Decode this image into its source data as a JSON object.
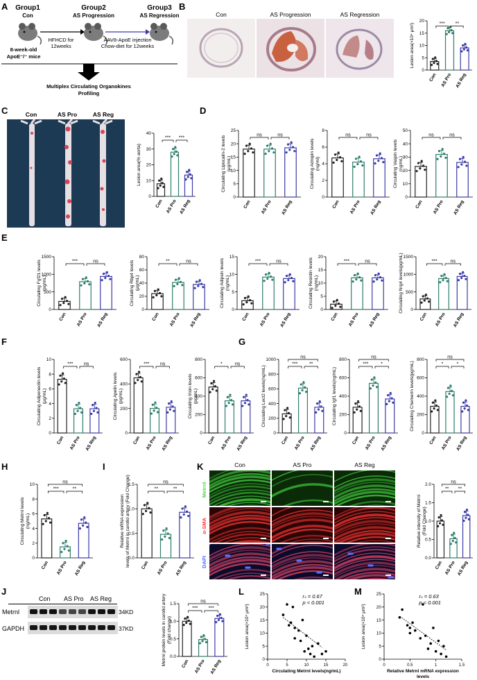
{
  "panel_letters": {
    "A": "A",
    "B": "B",
    "C": "C",
    "D": "D",
    "E": "E",
    "F": "F",
    "G": "G",
    "H": "H",
    "I": "I",
    "J": "J",
    "K": "K",
    "L": "L",
    "M": "M"
  },
  "panel_a": {
    "group1": "Group1",
    "group1_sub": "Con",
    "group2": "Group2",
    "group2_sub": "AS Progression",
    "group3": "Group3",
    "group3_sub": "AS Regression",
    "mice_line1": "8-week-old",
    "mice_line2": "ApoE⁻/⁻ mice",
    "step1_line1": "HFHCD for",
    "step1_line2": "12weeks",
    "step2_line1": "AAV8-ApoE injection",
    "step2_line2": "Chow-diet for 12weeks",
    "result_line1": "Multiplex Circulating Organokines",
    "result_line2": "Profiling"
  },
  "panel_b": {
    "headers": [
      "Con",
      "AS Progression",
      "AS Regression"
    ]
  },
  "panel_c": {
    "headers": [
      "Con",
      "AS Pro",
      "AS Reg"
    ]
  },
  "panel_j": {
    "lanes": [
      "Con",
      "AS Pro",
      "AS Reg"
    ],
    "rows": [
      "Metrnl",
      "GAPDH"
    ],
    "kda": [
      "34KD",
      "37KD"
    ]
  },
  "panel_k": {
    "cols": [
      "Con",
      "AS Pro",
      "AS Reg"
    ],
    "rows": [
      "Metrnl",
      "α-SMA",
      "DAPI"
    ],
    "row_colors": [
      "#4fd84a",
      "#ff3b3b",
      "#4a6cff"
    ]
  },
  "colors": {
    "con": "#222222",
    "pro": "#2e7d6b",
    "reg": "#3a3aa8"
  },
  "chart_data": [
    {
      "id": "B",
      "type": "bar",
      "categories": [
        "Con",
        "AS Pro",
        "AS Reg"
      ],
      "values": [
        3.5,
        16,
        9
      ],
      "ylim": [
        0,
        20
      ],
      "yticks": [
        0,
        5,
        10,
        15,
        20
      ],
      "ylabel": "Lesion area(×10⁴ μm²)",
      "sig": [
        {
          "a": 0,
          "b": 1,
          "t": "***",
          "lv": 0
        },
        {
          "a": 1,
          "b": 2,
          "t": "**",
          "lv": 0
        }
      ]
    },
    {
      "id": "C",
      "type": "bar",
      "categories": [
        "Con",
        "AS Pro",
        "AS Reg"
      ],
      "values": [
        8,
        28,
        13.5
      ],
      "ylim": [
        0,
        40
      ],
      "yticks": [
        0,
        10,
        20,
        30,
        40
      ],
      "ylabel": "Lesion area(% aorta)",
      "sig": [
        {
          "a": 0,
          "b": 1,
          "t": "***",
          "lv": 0
        },
        {
          "a": 1,
          "b": 2,
          "t": "***",
          "lv": 0
        }
      ]
    },
    {
      "id": "D1",
      "type": "bar",
      "categories": [
        "Con",
        "AS Pro",
        "AS Reg"
      ],
      "values": [
        18,
        18,
        18.5
      ],
      "ylim": [
        0,
        25
      ],
      "yticks": [
        0,
        5,
        10,
        15,
        20,
        25
      ],
      "ylabel": [
        "Circulating Lipocalin-2 levels",
        "(μg/mL)"
      ],
      "sig": [
        {
          "a": 0,
          "b": 1,
          "t": "ns",
          "lv": 0
        },
        {
          "a": 1,
          "b": 2,
          "t": "ns",
          "lv": 0
        }
      ]
    },
    {
      "id": "D2",
      "type": "bar",
      "categories": [
        "Con",
        "AS Pro",
        "AS Reg"
      ],
      "values": [
        4.7,
        4.2,
        4.6
      ],
      "ylim": [
        0,
        8
      ],
      "yticks": [
        0,
        2,
        4,
        6,
        8
      ],
      "ylabel": [
        "Circulating Adropin levels",
        "(ng/ml)"
      ],
      "sig": [
        {
          "a": 0,
          "b": 1,
          "t": "ns",
          "lv": 0
        },
        {
          "a": 1,
          "b": 2,
          "t": "ns",
          "lv": 0
        }
      ]
    },
    {
      "id": "D3",
      "type": "bar",
      "categories": [
        "Con",
        "AS Pro",
        "AS Reg"
      ],
      "values": [
        23,
        32,
        26
      ],
      "ylim": [
        0,
        50
      ],
      "yticks": [
        0,
        10,
        20,
        30,
        40,
        50
      ],
      "ylabel": [
        "Circulating Vaspin levels",
        "(ng/mL)"
      ],
      "sig": [
        {
          "a": 0,
          "b": 1,
          "t": "ns",
          "lv": 0
        },
        {
          "a": 1,
          "b": 2,
          "t": "ns",
          "lv": 0
        }
      ]
    },
    {
      "id": "E1",
      "type": "bar",
      "categories": [
        "Con",
        "AS Pro",
        "AS Reg"
      ],
      "values": [
        230,
        790,
        940
      ],
      "ylim": [
        0,
        1500
      ],
      "yticks": [
        0,
        500,
        1000,
        1500
      ],
      "ylabel": [
        "Circulating Fgf21 levels",
        "(pg/mL)"
      ],
      "sig": [
        {
          "a": 0,
          "b": 1,
          "t": "***",
          "lv": 0
        },
        {
          "a": 1,
          "b": 2,
          "t": "ns",
          "lv": 0
        }
      ]
    },
    {
      "id": "E2",
      "type": "bar",
      "categories": [
        "Con",
        "AS Pro",
        "AS Reg"
      ],
      "values": [
        24,
        41,
        38
      ],
      "ylim": [
        0,
        80
      ],
      "yticks": [
        0,
        20,
        40,
        60,
        80
      ],
      "ylabel": [
        "Circulating Rbp4 levels",
        "(μg/mL)"
      ],
      "sig": [
        {
          "a": 0,
          "b": 1,
          "t": "**",
          "lv": 0
        },
        {
          "a": 1,
          "b": 2,
          "t": "ns",
          "lv": 0
        }
      ]
    },
    {
      "id": "E3",
      "type": "bar",
      "categories": [
        "Con",
        "AS Pro",
        "AS Reg"
      ],
      "values": [
        2.5,
        9.2,
        8.8
      ],
      "ylim": [
        0,
        15
      ],
      "yticks": [
        0,
        5,
        10,
        15
      ],
      "ylabel": [
        "Circulating Adipsin levels",
        "(ng/mL)"
      ],
      "sig": [
        {
          "a": 0,
          "b": 1,
          "t": "***",
          "lv": 0
        },
        {
          "a": 1,
          "b": 2,
          "t": "ns",
          "lv": 0
        }
      ]
    },
    {
      "id": "E4",
      "type": "bar",
      "categories": [
        "Con",
        "AS Pro",
        "AS Reg"
      ],
      "values": [
        2,
        12,
        12
      ],
      "ylim": [
        0,
        20
      ],
      "yticks": [
        0,
        5,
        10,
        15,
        20
      ],
      "ylabel": [
        "Circulating Resistin levels",
        "(ng/mL)"
      ],
      "sig": [
        {
          "a": 0,
          "b": 1,
          "t": "***",
          "lv": 0
        },
        {
          "a": 1,
          "b": 2,
          "t": "ns",
          "lv": 0
        }
      ]
    },
    {
      "id": "E5",
      "type": "bar",
      "categories": [
        "Con",
        "AS Pro",
        "AS Reg"
      ],
      "values": [
        300,
        880,
        940
      ],
      "ylim": [
        0,
        1500
      ],
      "yticks": [
        0,
        500,
        1000,
        1500
      ],
      "ylabel": "Circulating Nrg4 levels(pg/mL)",
      "sig": [
        {
          "a": 0,
          "b": 1,
          "t": "***",
          "lv": 0
        },
        {
          "a": 1,
          "b": 2,
          "t": "ns",
          "lv": 0
        }
      ]
    },
    {
      "id": "F1",
      "type": "bar",
      "categories": [
        "Con",
        "AS Pro",
        "AS Reg"
      ],
      "values": [
        7.3,
        3.3,
        3.3
      ],
      "ylim": [
        0,
        10
      ],
      "yticks": [
        0,
        2,
        4,
        6,
        8,
        10
      ],
      "ylabel": [
        "Circulating Adiponectin levels",
        "(μg/mL)"
      ],
      "sig": [
        {
          "a": 0,
          "b": 1,
          "t": "***",
          "lv": 0
        },
        {
          "a": 1,
          "b": 2,
          "t": "ns",
          "lv": 0
        }
      ]
    },
    {
      "id": "F2",
      "type": "bar",
      "categories": [
        "Con",
        "AS Pro",
        "AS Reg"
      ],
      "values": [
        450,
        200,
        210
      ],
      "ylim": [
        0,
        600
      ],
      "yticks": [
        0,
        200,
        400,
        600
      ],
      "ylabel": [
        "Circulating Apelin levels",
        "(pg/mL)"
      ],
      "sig": [
        {
          "a": 0,
          "b": 1,
          "t": "***",
          "lv": 0
        },
        {
          "a": 1,
          "b": 2,
          "t": "ns",
          "lv": 0
        }
      ]
    },
    {
      "id": "F3",
      "type": "bar",
      "categories": [
        "Con",
        "AS Pro",
        "AS Reg"
      ],
      "values": [
        500,
        350,
        350
      ],
      "ylim": [
        0,
        800
      ],
      "yticks": [
        0,
        200,
        400,
        600,
        800
      ],
      "ylabel": [
        "Circulating Irisin levels",
        "(pg/mL)"
      ],
      "sig": [
        {
          "a": 0,
          "b": 1,
          "t": "*",
          "lv": 0
        },
        {
          "a": 1,
          "b": 2,
          "t": "ns",
          "lv": 0
        }
      ]
    },
    {
      "id": "G1",
      "type": "bar",
      "categories": [
        "Con",
        "AS Pro",
        "AS Reg"
      ],
      "values": [
        260,
        610,
        350
      ],
      "ylim": [
        0,
        1000
      ],
      "yticks": [
        0,
        200,
        400,
        600,
        800,
        1000
      ],
      "ylabel": "Circulating Lect2 levels(ng/mL)",
      "sig": [
        {
          "a": 0,
          "b": 1,
          "t": "***",
          "lv": 0
        },
        {
          "a": 1,
          "b": 2,
          "t": "**",
          "lv": 0
        },
        {
          "a": 0,
          "b": 2,
          "t": "ns",
          "lv": 1
        }
      ]
    },
    {
      "id": "G2",
      "type": "bar",
      "categories": [
        "Con",
        "AS Pro",
        "AS Reg"
      ],
      "values": [
        280,
        540,
        370
      ],
      "ylim": [
        0,
        800
      ],
      "yticks": [
        0,
        200,
        400,
        600,
        800
      ],
      "ylabel": "Circulating Igf1 levels(ng/mL)",
      "sig": [
        {
          "a": 0,
          "b": 1,
          "t": "***",
          "lv": 0
        },
        {
          "a": 1,
          "b": 2,
          "t": "*",
          "lv": 0
        },
        {
          "a": 0,
          "b": 2,
          "t": "ns",
          "lv": 1
        }
      ]
    },
    {
      "id": "G3",
      "type": "bar",
      "categories": [
        "Con",
        "AS Pro",
        "AS Reg"
      ],
      "values": [
        290,
        450,
        290
      ],
      "ylim": [
        0,
        800
      ],
      "yticks": [
        0,
        200,
        400,
        600,
        800
      ],
      "ylabel": "Circulating Chemerin levels(pg/mL)",
      "sig": [
        {
          "a": 0,
          "b": 1,
          "t": "*",
          "lv": 0
        },
        {
          "a": 1,
          "b": 2,
          "t": "*",
          "lv": 0
        },
        {
          "a": 0,
          "b": 2,
          "t": "ns",
          "lv": 1
        }
      ]
    },
    {
      "id": "H",
      "type": "bar",
      "categories": [
        "Con",
        "AS Pro",
        "AS Reg"
      ],
      "values": [
        5.3,
        1.5,
        4.7
      ],
      "ylim": [
        0,
        10
      ],
      "yticks": [
        0,
        2,
        4,
        6,
        8,
        10
      ],
      "ylabel": [
        "Circulating Metrnl levels",
        "(ng/mL)"
      ],
      "sig": [
        {
          "a": 0,
          "b": 1,
          "t": "***",
          "lv": 0
        },
        {
          "a": 1,
          "b": 2,
          "t": "**",
          "lv": 0
        },
        {
          "a": 0,
          "b": 2,
          "t": "ns",
          "lv": 1
        }
      ]
    },
    {
      "id": "I",
      "type": "bar",
      "categories": [
        "Con",
        "AS Pro",
        "AS Reg"
      ],
      "values": [
        1.0,
        0.48,
        0.93
      ],
      "ylim": [
        0,
        1.5
      ],
      "yticks": [
        0.0,
        0.5,
        1.0,
        1.5
      ],
      "ylabel": [
        "Relative mRNA expression",
        "levels of Metrnl in carotid artery (Fold Change)"
      ],
      "sig": [
        {
          "a": 0,
          "b": 1,
          "t": "**",
          "lv": 0
        },
        {
          "a": 1,
          "b": 2,
          "t": "**",
          "lv": 0
        },
        {
          "a": 0,
          "b": 2,
          "t": "ns",
          "lv": 1
        }
      ]
    },
    {
      "id": "K",
      "type": "bar",
      "categories": [
        "Con",
        "AS Pro",
        "AS Reg"
      ],
      "values": [
        1.0,
        0.52,
        1.15
      ],
      "ylim": [
        0,
        2.0
      ],
      "yticks": [
        0.0,
        0.5,
        1.0,
        1.5,
        2.0
      ],
      "ylabel": [
        "Relative intensity of Metrnl",
        "(Fold Change)"
      ],
      "sig": [
        {
          "a": 0,
          "b": 1,
          "t": "**",
          "lv": 0
        },
        {
          "a": 1,
          "b": 2,
          "t": "**",
          "lv": 0
        },
        {
          "a": 0,
          "b": 2,
          "t": "ns",
          "lv": 1
        }
      ]
    },
    {
      "id": "J",
      "type": "bar",
      "categories": [
        "Con",
        "AS Pro",
        "AS Reg"
      ],
      "values": [
        1.0,
        0.48,
        1.08
      ],
      "ylim": [
        0,
        1.5
      ],
      "yticks": [
        0.0,
        0.5,
        1.0,
        1.5
      ],
      "ylabel": [
        "Metrnl protein levels in carotid artery",
        "(Fold change)"
      ],
      "sig": [
        {
          "a": 0,
          "b": 1,
          "t": "***",
          "lv": 0
        },
        {
          "a": 1,
          "b": 2,
          "t": "***",
          "lv": 0
        },
        {
          "a": 0,
          "b": 2,
          "t": "ns",
          "lv": 1
        }
      ]
    },
    {
      "id": "L",
      "type": "scatter",
      "x": [
        4,
        5,
        5.5,
        6,
        6.5,
        7,
        7,
        8,
        8.5,
        9,
        9.5,
        10,
        10.5,
        11,
        11.5,
        12,
        13,
        14,
        15
      ],
      "y": [
        17,
        21,
        13,
        14,
        20,
        8,
        12,
        11,
        7,
        15,
        3,
        9,
        4,
        2,
        5,
        1,
        6,
        2,
        3
      ],
      "xlim": [
        0,
        20
      ],
      "ylim": [
        0,
        25
      ],
      "xticks": [
        0,
        5,
        10,
        15,
        20
      ],
      "yticks": [
        0,
        5,
        10,
        15,
        20,
        25
      ],
      "xlabel": "Circulating Metrnl levels(ng/mL)",
      "ylabel": "Lesion area(×10⁴ μm²)",
      "fit": [
        [
          4,
          16
        ],
        [
          14,
          4.5
        ]
      ],
      "stats": [
        "rₛ = 0.67",
        "p < 0.001"
      ]
    },
    {
      "id": "M",
      "type": "scatter",
      "x": [
        0.3,
        0.35,
        0.45,
        0.5,
        0.5,
        0.55,
        0.6,
        0.7,
        0.75,
        0.8,
        0.85,
        0.9,
        0.95,
        1.0,
        1.05,
        1.1,
        1.15,
        1.2
      ],
      "y": [
        16,
        19,
        13,
        12,
        10,
        14,
        11,
        8,
        21,
        9,
        4,
        6,
        12,
        3,
        7,
        2,
        5,
        1
      ],
      "xlim": [
        0,
        1.5
      ],
      "ylim": [
        0,
        25
      ],
      "xticks": [
        0,
        0.5,
        1,
        1.5
      ],
      "yticks": [
        0,
        5,
        10,
        15,
        20,
        25
      ],
      "xlabel": [
        "Relative Metrnl mRNA expression",
        "levels"
      ],
      "ylabel": "Lesion area(×10⁴ μm²)",
      "fit": [
        [
          0.3,
          16.5
        ],
        [
          1.2,
          3.5
        ]
      ],
      "stats": [
        "rₛ = 0.63",
        "p < 0.001"
      ]
    }
  ]
}
